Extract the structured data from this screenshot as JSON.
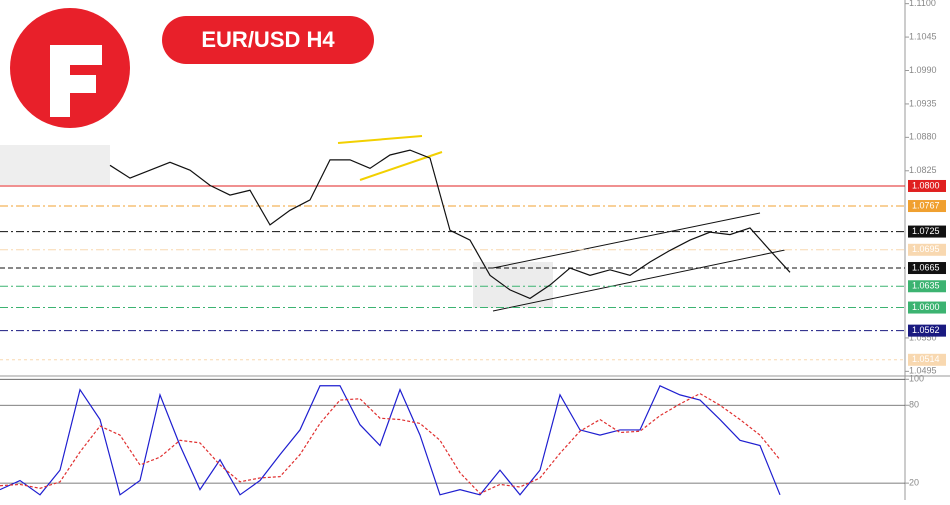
{
  "badge": "EUR/USD H4",
  "chart_data": [
    {
      "type": "line",
      "series": [
        {
          "color": "#111111",
          "values": [
            1.0834,
            1.0813,
            1.0826,
            1.0839,
            1.0826,
            1.0801,
            1.0785,
            1.0793,
            1.0736,
            1.076,
            1.0777,
            1.0843,
            1.0843,
            1.0829,
            1.0851,
            1.0859,
            1.0846,
            1.0727,
            1.0711,
            1.0653,
            1.0629,
            1.0615,
            1.0637,
            1.0665,
            1.0653,
            1.0662,
            1.0653,
            1.0675,
            1.0694,
            1.0711,
            1.0724,
            1.072,
            1.0731,
            1.0694,
            1.0658
          ]
        }
      ],
      "ylim": [
        1.0489,
        1.1106
      ],
      "yticks": [
        {
          "value": 1.11,
          "label": "1.1100"
        },
        {
          "value": 1.1045,
          "label": "1.1045"
        },
        {
          "value": 1.099,
          "label": "1.0990"
        },
        {
          "value": 1.0935,
          "label": "1.0935"
        },
        {
          "value": 1.088,
          "label": "1.0880"
        },
        {
          "value": 1.0825,
          "label": "1.0825"
        },
        {
          "value": 1.055,
          "label": "1.0550"
        },
        {
          "value": 1.0495,
          "label": "1.0495"
        }
      ],
      "levels": [
        {
          "value": 1.08,
          "label": "1.0800",
          "color": "#e02020",
          "dash": "none"
        },
        {
          "value": 1.0767,
          "label": "1.0767",
          "color": "#f0a030",
          "dash": "8 3 2 3"
        },
        {
          "value": 1.0725,
          "label": "1.0725",
          "color": "#111111",
          "dash": "8 3 2 3"
        },
        {
          "value": 1.0695,
          "label": "1.0695",
          "color": "#f8d8b0",
          "dash": "8 3 2 3"
        },
        {
          "value": 1.0665,
          "label": "1.0665",
          "color": "#111111",
          "dash": "5 3"
        },
        {
          "value": 1.0635,
          "label": "1.0635",
          "color": "#3cb371",
          "dash": "8 3 2 3"
        },
        {
          "value": 1.06,
          "label": "1.0600",
          "color": "#3cb371",
          "dash": "8 3 2 3"
        },
        {
          "value": 1.0562,
          "label": "1.0562",
          "color": "#1a1a80",
          "dash": "8 3 2 3"
        },
        {
          "value": 1.0514,
          "label": "1.0514",
          "color": "#f8d8b0",
          "dash": "3 3"
        }
      ]
    },
    {
      "type": "line",
      "series": [
        {
          "color": "#1f1fd0",
          "dash": false,
          "values": [
            15,
            22,
            11,
            30,
            92,
            69,
            11,
            22,
            88,
            49,
            15,
            38,
            11,
            22,
            42,
            61,
            95,
            95,
            65,
            49,
            92,
            57,
            11,
            15,
            11,
            30,
            11,
            30,
            88,
            61,
            57,
            61,
            61,
            95,
            88,
            84,
            69,
            53,
            49,
            11
          ]
        },
        {
          "color": "#e03030",
          "dash": true,
          "values": [
            18,
            19,
            16,
            21,
            44,
            64,
            57,
            34,
            40,
            53,
            51,
            34,
            21,
            24,
            25,
            42,
            66,
            84,
            85,
            70,
            69,
            66,
            53,
            28,
            12,
            19,
            17,
            24,
            43,
            60,
            69,
            59,
            60,
            72,
            81,
            89,
            80,
            69,
            57,
            38
          ]
        }
      ],
      "ylim": [
        7,
        101
      ],
      "yticks": [
        100,
        80,
        20
      ]
    }
  ]
}
